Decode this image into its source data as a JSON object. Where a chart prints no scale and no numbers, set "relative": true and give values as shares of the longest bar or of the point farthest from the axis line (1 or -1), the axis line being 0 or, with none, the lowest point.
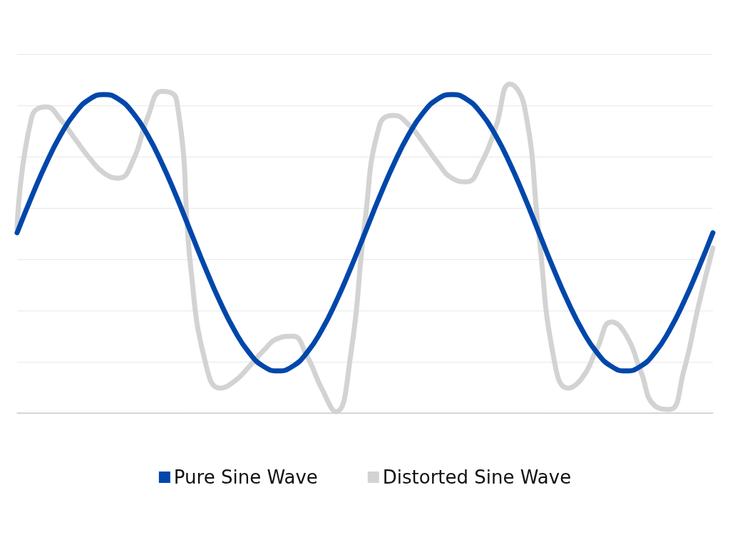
{
  "chart_data": {
    "type": "line",
    "relative": true,
    "grid": "y",
    "legend": "bottom",
    "marker": "none",
    "line_style": "solid",
    "categories": [
      null,
      null,
      null,
      null,
      null,
      null,
      null,
      null,
      null,
      null,
      null,
      null,
      null,
      null,
      null,
      null,
      null,
      null,
      null,
      null,
      null,
      null,
      null,
      null,
      null,
      null,
      null,
      null,
      null,
      null,
      null,
      null,
      null,
      null,
      null,
      null,
      null,
      null,
      null,
      null,
      null,
      null,
      null,
      null,
      null,
      null,
      null,
      null,
      null
    ],
    "series": [
      {
        "name": "Pure Sine Wave",
        "color": "#0047ab",
        "values": [
          0.548,
          0.657,
          0.758,
          0.845,
          0.912,
          0.954,
          0.968,
          0.954,
          0.912,
          0.845,
          0.758,
          0.657,
          0.548,
          0.439,
          0.338,
          0.251,
          0.184,
          0.142,
          0.128,
          0.142,
          0.184,
          0.251,
          0.338,
          0.439,
          0.548,
          0.657,
          0.758,
          0.845,
          0.912,
          0.954,
          0.968,
          0.954,
          0.912,
          0.845,
          0.758,
          0.657,
          0.548,
          0.439,
          0.338,
          0.251,
          0.184,
          0.142,
          0.128,
          0.142,
          0.184,
          0.251,
          0.338,
          0.439,
          0.548
        ]
      },
      {
        "name": "Distorted Sine Wave",
        "color": "#d3d3d3",
        "values": [
          0.563,
          0.898,
          0.931,
          0.892,
          0.833,
          0.775,
          0.729,
          0.714,
          0.768,
          0.898,
          0.978,
          0.952,
          0.433,
          0.152,
          0.076,
          0.097,
          0.141,
          0.19,
          0.227,
          0.234,
          0.173,
          0.076,
          0.004,
          0.173,
          0.584,
          0.874,
          0.905,
          0.877,
          0.823,
          0.762,
          0.714,
          0.703,
          0.758,
          0.866,
          1,
          0.931,
          0.541,
          0.173,
          0.076,
          0.108,
          0.195,
          0.277,
          0.238,
          0.13,
          0.022,
          0.011,
          0.13,
          0.325,
          0.502
        ]
      }
    ]
  }
}
